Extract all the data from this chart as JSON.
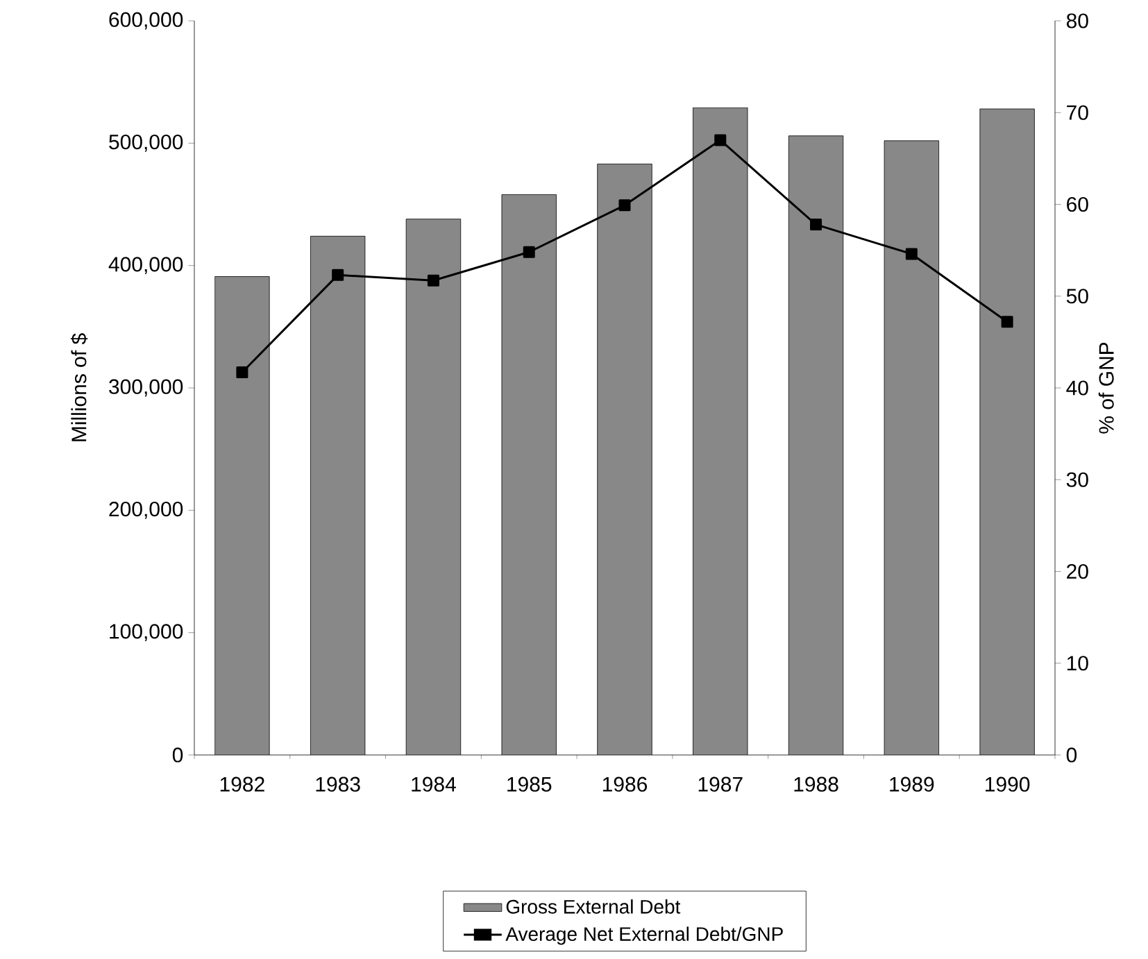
{
  "chart_data": {
    "type": "bar",
    "categories": [
      "1982",
      "1983",
      "1984",
      "1985",
      "1986",
      "1987",
      "1988",
      "1989",
      "1990"
    ],
    "ylabel": "Millions of $",
    "y2label": "% of GNP",
    "ylim": [
      0,
      600000
    ],
    "yticks": [
      0,
      {
        "value": 100000,
        "label": "100,000"
      },
      {
        "value": 200000,
        "label": "200,000"
      },
      {
        "value": 300000,
        "label": "300,000"
      },
      {
        "value": 400000,
        "label": "400,000"
      },
      {
        "value": 500000,
        "label": "500,000"
      },
      {
        "value": 600000,
        "label": "600,000"
      }
    ],
    "y2lim": [
      0,
      80
    ],
    "y2ticks": [
      0,
      10,
      20,
      30,
      40,
      50,
      60,
      70,
      80
    ],
    "series": [
      {
        "name": "Gross External Debt",
        "color": "#888888",
        "values": [
          391000,
          424000,
          438000,
          458000,
          483000,
          529000,
          506000,
          502000,
          528000
        ]
      },
      {
        "name": "Average Net External Debt/GNP",
        "type": "line",
        "axis": "y2",
        "color": "#000000",
        "values": [
          41.7,
          52.3,
          51.7,
          54.8,
          59.9,
          67.0,
          57.8,
          54.6,
          47.2
        ]
      }
    ],
    "legend": "bottom",
    "grid": false,
    "marker": "square",
    "line_style": "solid"
  }
}
